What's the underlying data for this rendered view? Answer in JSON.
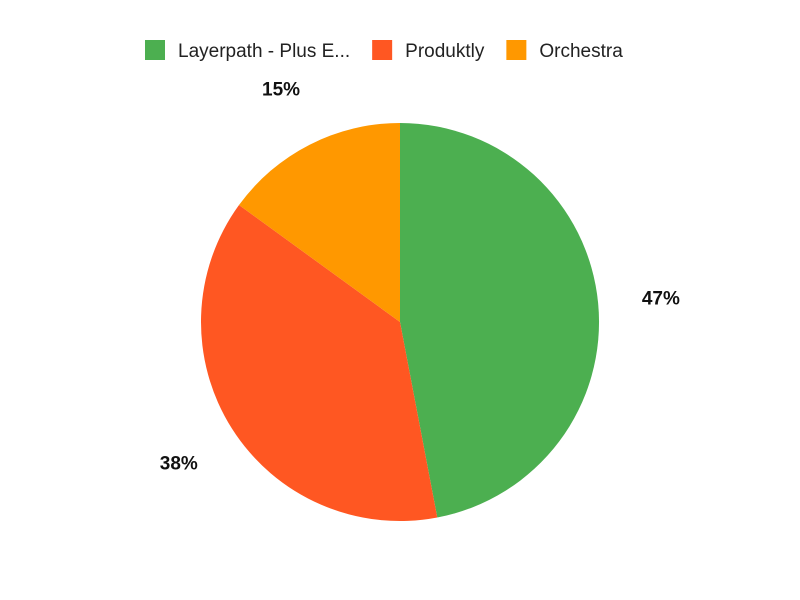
{
  "chart_data": {
    "type": "pie",
    "legend_position": "top",
    "slices": [
      {
        "name": "Layerpath - Plus E...",
        "value": 47,
        "label": "47%",
        "color": "#4caf50"
      },
      {
        "name": "Produktly",
        "value": 38,
        "label": "38%",
        "color": "#ff5722"
      },
      {
        "name": "Orchestra",
        "value": 15,
        "label": "15%",
        "color": "#ff9800"
      }
    ]
  }
}
